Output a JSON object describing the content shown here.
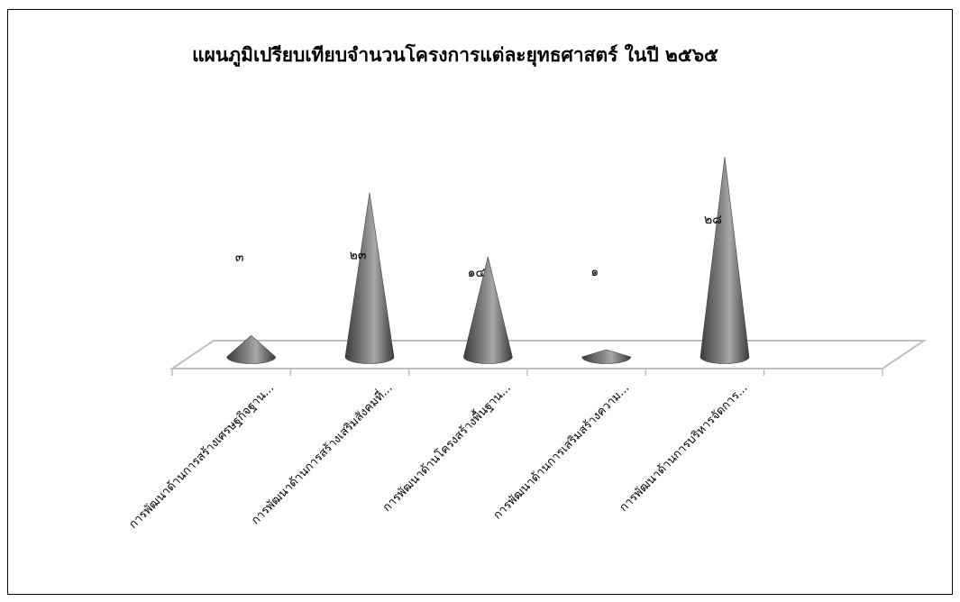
{
  "chart_data": {
    "type": "bar",
    "shape": "cone-3d",
    "title": "แผนภูมิเปรียบเทียบจำนวนโครงการแต่ละยุทธศาสตร์ ในปี ๒๕๖๕",
    "xlabel": "",
    "ylabel": "",
    "categories": [
      "การพัฒนาด้านการสร้างเศรษฐกิจฐาน...",
      "การพัฒนาด้านการสร้างเสริมสังคมที่...",
      "การพัฒนาด้านโครงสร้างพื้นฐาน...",
      "การพัฒนาด้านการเสริมสร้างความ...",
      "การพัฒนาด้านการบริหารจัดการ..."
    ],
    "values": [
      3,
      23,
      14,
      1,
      28
    ],
    "value_labels": [
      "๓",
      "๒๓",
      "๑๔",
      "๑",
      "๒๘"
    ],
    "grid": false,
    "legend": "none",
    "colors": {
      "cone": "#6a6a6a",
      "cone_light": "#b4b4b4",
      "floor": "#bfbfbf"
    }
  }
}
